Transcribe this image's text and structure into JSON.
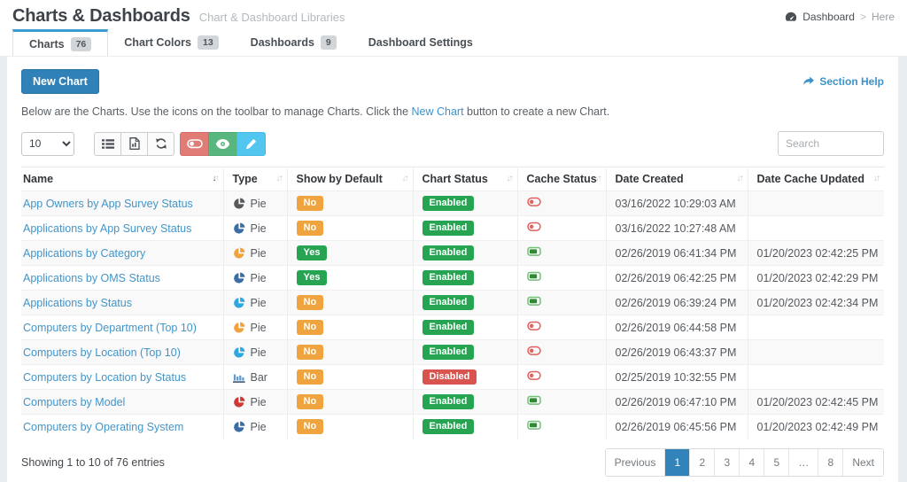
{
  "header": {
    "title": "Charts & Dashboards",
    "subtitle": "Chart & Dashboard Libraries",
    "breadcrumb": {
      "root": "Dashboard",
      "separator": ">",
      "current": "Here",
      "icon": "dashboard-gauge-icon"
    }
  },
  "tabs": [
    {
      "label": "Charts",
      "badge": "76",
      "active": true
    },
    {
      "label": "Chart Colors",
      "badge": "13",
      "active": false
    },
    {
      "label": "Dashboards",
      "badge": "9",
      "active": false
    },
    {
      "label": "Dashboard Settings",
      "badge": "",
      "active": false
    }
  ],
  "actions": {
    "new_chart": "New Chart",
    "section_help": "Section Help"
  },
  "intro": {
    "before": "Below are the Charts. Use the icons on the toolbar to manage Charts. Click the ",
    "link": "New Chart",
    "after": " button to create a new Chart."
  },
  "toolbar": {
    "page_size": "10",
    "buttons": [
      "list-view",
      "export-file",
      "refresh",
      "toggle-cache",
      "show-chart",
      "edit-chart"
    ],
    "search_placeholder": "Search"
  },
  "colors": {
    "accent_blue": "#3081b8",
    "tab_accent": "#3d9bd4",
    "link": "#3d93c9",
    "badge_yes": "#26a452",
    "badge_no": "#f0a43f",
    "badge_enabled": "#26a452",
    "badge_disabled": "#d9534f",
    "btn_red": "#e07b75",
    "btn_green": "#57b77e",
    "btn_cyan": "#53c6ef",
    "cache_on": "#2e8b34",
    "cache_off": "#e0605c"
  },
  "table": {
    "columns": [
      {
        "label": "Name",
        "sort": "asc"
      },
      {
        "label": "Type",
        "sort": "none"
      },
      {
        "label": "Show by Default",
        "sort": "none"
      },
      {
        "label": "Chart Status",
        "sort": "none"
      },
      {
        "label": "Cache Status",
        "sort": "none"
      },
      {
        "label": "Date Created",
        "sort": "none"
      },
      {
        "label": "Date Cache Updated",
        "sort": "none"
      }
    ],
    "rows": [
      {
        "name": "App Owners by App Survey Status",
        "type": "Pie",
        "type_icon": "pie-icon",
        "type_color": "#55595c",
        "show_by_default": "No",
        "chart_status": "Enabled",
        "cache_status": "off",
        "date_created": "03/16/2022 10:29:03 AM",
        "date_cache_updated": ""
      },
      {
        "name": "Applications by App Survey Status",
        "type": "Pie",
        "type_icon": "pie-icon",
        "type_color": "#3a6ea5",
        "show_by_default": "No",
        "chart_status": "Enabled",
        "cache_status": "off",
        "date_created": "03/16/2022 10:27:48 AM",
        "date_cache_updated": ""
      },
      {
        "name": "Applications by Category",
        "type": "Pie",
        "type_icon": "pie-icon",
        "type_color": "#f0a23c",
        "show_by_default": "Yes",
        "chart_status": "Enabled",
        "cache_status": "on",
        "date_created": "02/26/2019 06:41:34 PM",
        "date_cache_updated": "01/20/2023 02:42:25 PM"
      },
      {
        "name": "Applications by OMS Status",
        "type": "Pie",
        "type_icon": "pie-icon",
        "type_color": "#3a6ea5",
        "show_by_default": "Yes",
        "chart_status": "Enabled",
        "cache_status": "on",
        "date_created": "02/26/2019 06:42:25 PM",
        "date_cache_updated": "01/20/2023 02:42:29 PM"
      },
      {
        "name": "Applications by Status",
        "type": "Pie",
        "type_icon": "pie-icon",
        "type_color": "#2ea7e0",
        "show_by_default": "No",
        "chart_status": "Enabled",
        "cache_status": "on",
        "date_created": "02/26/2019 06:39:24 PM",
        "date_cache_updated": "01/20/2023 02:42:34 PM"
      },
      {
        "name": "Computers by Department (Top 10)",
        "type": "Pie",
        "type_icon": "pie-icon",
        "type_color": "#f0a23c",
        "show_by_default": "No",
        "chart_status": "Enabled",
        "cache_status": "off",
        "date_created": "02/26/2019 06:44:58 PM",
        "date_cache_updated": ""
      },
      {
        "name": "Computers by Location (Top 10)",
        "type": "Pie",
        "type_icon": "pie-icon",
        "type_color": "#2ea7e0",
        "show_by_default": "No",
        "chart_status": "Enabled",
        "cache_status": "off",
        "date_created": "02/26/2019 06:43:37 PM",
        "date_cache_updated": ""
      },
      {
        "name": "Computers by Location by Status",
        "type": "Bar",
        "type_icon": "bar-icon",
        "type_color": "#5b9bd5",
        "show_by_default": "No",
        "chart_status": "Disabled",
        "cache_status": "off",
        "date_created": "02/25/2019 10:32:55 PM",
        "date_cache_updated": ""
      },
      {
        "name": "Computers by Model",
        "type": "Pie",
        "type_icon": "pie-icon",
        "type_color": "#cc3a36",
        "show_by_default": "No",
        "chart_status": "Enabled",
        "cache_status": "on",
        "date_created": "02/26/2019 06:47:10 PM",
        "date_cache_updated": "01/20/2023 02:42:45 PM"
      },
      {
        "name": "Computers by Operating System",
        "type": "Pie",
        "type_icon": "pie-icon",
        "type_color": "#3a6ea5",
        "show_by_default": "No",
        "chart_status": "Enabled",
        "cache_status": "on",
        "date_created": "02/26/2019 06:45:56 PM",
        "date_cache_updated": "01/20/2023 02:42:49 PM"
      }
    ]
  },
  "footer": {
    "summary": "Showing 1 to 10 of 76 entries",
    "pagination": [
      "Previous",
      "1",
      "2",
      "3",
      "4",
      "5",
      "…",
      "8",
      "Next"
    ],
    "active_page": "1"
  }
}
